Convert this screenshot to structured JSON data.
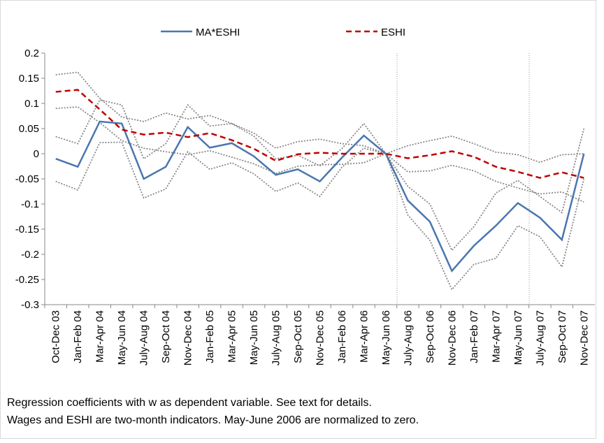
{
  "chart_data": {
    "type": "line",
    "categories": [
      "Oct-Dec 03",
      "Jan-Feb 04",
      "Mar-Apr 04",
      "May-Jun 04",
      "July-Aug 04",
      "Sep-Oct 04",
      "Nov-Dec 04",
      "Jan-Feb 05",
      "Mar-Apr 05",
      "May-Jun 05",
      "July-Aug 05",
      "Sep-Oct 05",
      "Nov-Dec 05",
      "Jan-Feb 06",
      "Mar-Apr 06",
      "May-Jun 06",
      "July-Aug 06",
      "Sep-Oct 06",
      "Nov-Dec 06",
      "Jan-Feb 07",
      "Mar-Apr 07",
      "May-Jun 07",
      "July-Aug 07",
      "Sep-Oct 07",
      "Nov-Dec 07"
    ],
    "series": [
      {
        "color": "#888888",
        "style": "dotted",
        "values": [
          0.157,
          0.162,
          0.11,
          0.073,
          0.064,
          0.081,
          0.069,
          0.076,
          0.06,
          0.041,
          0.011,
          0.024,
          0.029,
          0.02,
          0.016,
          0,
          0.016,
          0.026,
          0.035,
          0.02,
          0.003,
          -0.002,
          -0.017,
          -0.002,
          0
        ]
      },
      {
        "color": "#888888",
        "style": "dotted",
        "values": [
          0.09,
          0.093,
          0.062,
          0.026,
          0.011,
          0.004,
          -0.002,
          0.006,
          -0.007,
          -0.02,
          -0.039,
          -0.025,
          -0.022,
          -0.021,
          -0.018,
          0,
          -0.036,
          -0.034,
          -0.023,
          -0.034,
          -0.055,
          -0.068,
          -0.08,
          -0.076,
          -0.096
        ]
      },
      {
        "color": "#888888",
        "style": "dotted",
        "values": [
          0.034,
          0.02,
          0.107,
          0.097,
          -0.01,
          0.02,
          0.097,
          0.055,
          0.06,
          0.035,
          -0.01,
          -0.003,
          -0.024,
          0.01,
          0.06,
          0,
          -0.065,
          -0.1,
          -0.192,
          -0.145,
          -0.078,
          -0.053,
          -0.085,
          -0.117,
          0.05
        ]
      },
      {
        "color": "#888888",
        "style": "dotted",
        "values": [
          -0.055,
          -0.072,
          0.022,
          0.023,
          -0.088,
          -0.07,
          0.004,
          -0.031,
          -0.018,
          -0.04,
          -0.075,
          -0.058,
          -0.085,
          -0.027,
          0.011,
          0,
          -0.122,
          -0.172,
          -0.27,
          -0.22,
          -0.208,
          -0.143,
          -0.165,
          -0.225,
          -0.05
        ]
      },
      {
        "name": "MA*ESHI",
        "color": "#4a76b0",
        "style": "solid",
        "values": [
          -0.01,
          -0.026,
          0.064,
          0.06,
          -0.05,
          -0.026,
          0.053,
          0.012,
          0.021,
          -0.005,
          -0.042,
          -0.031,
          -0.055,
          -0.008,
          0.036,
          0,
          -0.093,
          -0.135,
          -0.233,
          -0.183,
          -0.143,
          -0.098,
          -0.127,
          -0.171,
          0
        ]
      },
      {
        "name": "ESHI",
        "color": "#c00000",
        "style": "dashed",
        "values": [
          0.123,
          0.127,
          0.088,
          0.048,
          0.038,
          0.042,
          0.033,
          0.041,
          0.027,
          0.01,
          -0.014,
          -0.001,
          0.002,
          0,
          0,
          0,
          -0.009,
          -0.003,
          0.005,
          -0.006,
          -0.026,
          -0.036,
          -0.048,
          -0.037,
          -0.048
        ]
      }
    ],
    "ylim": [
      -0.3,
      0.2
    ],
    "yticks": [
      0.2,
      0.15,
      0.1,
      0.05,
      0,
      -0.05,
      -0.1,
      -0.15,
      -0.2,
      -0.25,
      -0.3
    ],
    "grid": false,
    "legend": "top",
    "notes": [
      "Regression coefficients with w as dependent variable.  See text for details.",
      "Wages and ESHI are two-month indicators. May-June 2006 are normalized to zero."
    ]
  }
}
